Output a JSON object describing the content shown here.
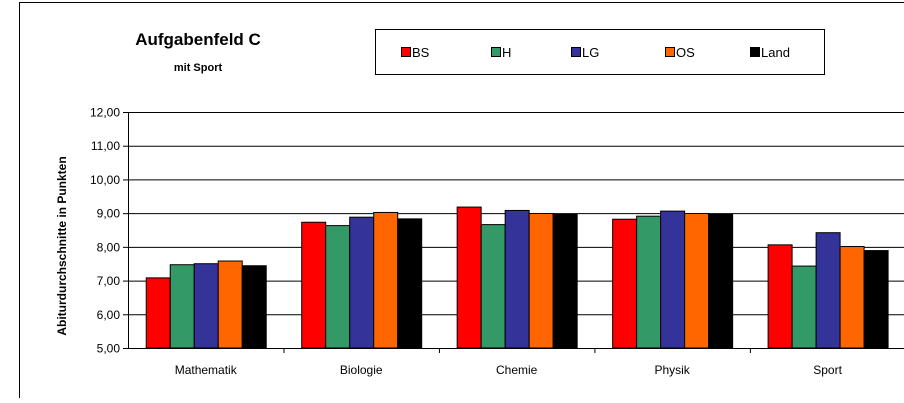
{
  "chart_data": {
    "type": "bar",
    "title": "Aufgabenfeld C",
    "subtitle": "mit Sport",
    "ylabel": "Abiturdurchschnitte in Punkten",
    "xlabel": "",
    "ylim": [
      5,
      12
    ],
    "yticks": [
      "5,00",
      "6,00",
      "7,00",
      "8,00",
      "9,00",
      "10,00",
      "11,00",
      "12,00"
    ],
    "grid": true,
    "legend_position": "top-center",
    "categories": [
      "Mathematik",
      "Biologie",
      "Chemie",
      "Physik",
      "Sport"
    ],
    "series": [
      {
        "name": "BS",
        "color": "#ff0000",
        "values": [
          7.08,
          8.73,
          9.18,
          8.82,
          8.06
        ]
      },
      {
        "name": "H",
        "color": "#339966",
        "values": [
          7.47,
          8.63,
          8.66,
          8.91,
          7.43
        ]
      },
      {
        "name": "LG",
        "color": "#333399",
        "values": [
          7.5,
          8.88,
          9.08,
          9.06,
          8.42
        ]
      },
      {
        "name": "OS",
        "color": "#ff6600",
        "values": [
          7.58,
          9.02,
          8.99,
          8.99,
          8.01
        ]
      },
      {
        "name": "Land",
        "color": "#000000",
        "values": [
          7.44,
          8.83,
          8.96,
          8.96,
          7.89
        ]
      }
    ]
  }
}
